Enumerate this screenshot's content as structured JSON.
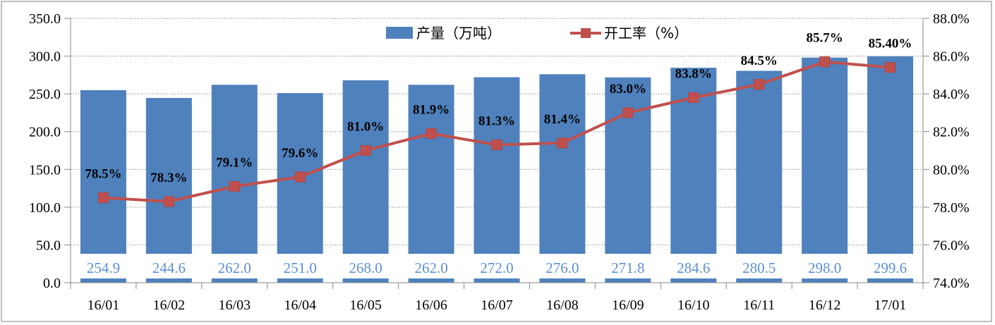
{
  "chart_data": {
    "type": "bar+line",
    "categories": [
      "16/01",
      "16/02",
      "16/03",
      "16/04",
      "16/05",
      "16/06",
      "16/07",
      "16/08",
      "16/09",
      "16/10",
      "16/11",
      "16/12",
      "17/01"
    ],
    "series": [
      {
        "name": "产量（万吨）",
        "type": "bar",
        "axis": "left",
        "color": "#4f81bd",
        "values": [
          254.9,
          244.6,
          262.0,
          251.0,
          268.0,
          262.0,
          272.0,
          276.0,
          271.8,
          284.6,
          280.5,
          298.0,
          299.6
        ],
        "labels": [
          "254.9",
          "244.6",
          "262.0",
          "251.0",
          "268.0",
          "262.0",
          "272.0",
          "276.0",
          "271.8",
          "284.6",
          "280.5",
          "298.0",
          "299.6"
        ]
      },
      {
        "name": "开工率（%）",
        "type": "line",
        "axis": "right",
        "color": "#c0504d",
        "values": [
          78.5,
          78.3,
          79.1,
          79.6,
          81.0,
          81.9,
          81.3,
          81.4,
          83.0,
          83.8,
          84.5,
          85.7,
          85.4
        ],
        "labels": [
          "78.5%",
          "78.3%",
          "79.1%",
          "79.6%",
          "81.0%",
          "81.9%",
          "81.3%",
          "81.4%",
          "83.0%",
          "83.8%",
          "84.5%",
          "85.7%",
          "85.40%"
        ]
      }
    ],
    "y_left": {
      "min": 0,
      "max": 350,
      "step": 50,
      "ticks": [
        "0.0",
        "50.0",
        "100.0",
        "150.0",
        "200.0",
        "250.0",
        "300.0",
        "350.0"
      ]
    },
    "y_right": {
      "min": 74,
      "max": 88,
      "step": 2,
      "ticks": [
        "74.0%",
        "76.0%",
        "78.0%",
        "80.0%",
        "82.0%",
        "84.0%",
        "86.0%",
        "88.0%"
      ]
    },
    "grid": "horizontal-dotted",
    "legend": "top-center"
  }
}
